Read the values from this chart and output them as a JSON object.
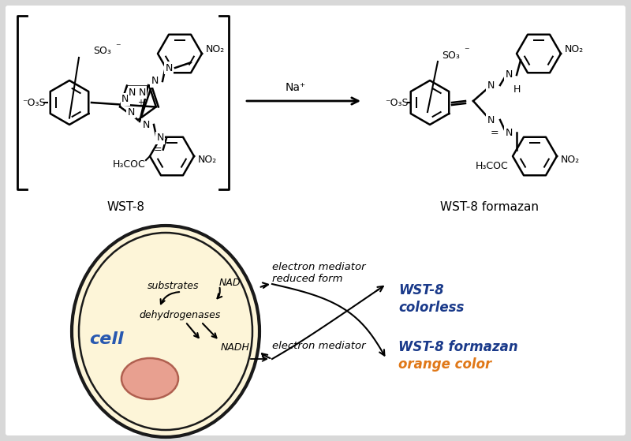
{
  "bg_color": "#d8d8d8",
  "panel_bg": "#ffffff",
  "cell_fill": "#fdf5d8",
  "cell_outline": "#1a1a1a",
  "nucleus_fill": "#e8a090",
  "nucleus_outline": "#b06050",
  "wst8_label_color": "#1a3a8a",
  "orange_color": "#e07818",
  "cell_text_color": "#2858b0",
  "wst8_label": "WST-8",
  "formazan_label": "WST-8 formazan",
  "substrates": "substrates",
  "dehydrogenases": "dehydrogenases",
  "nad": "NAD",
  "nadh": "NADH",
  "cell_word": "cell",
  "em_reduced_1": "electron mediator",
  "em_reduced_2": "reduced form",
  "em": "electron mediator",
  "wst8_colorless_1": "WST-8",
  "wst8_colorless_2": "colorless",
  "wst8_formazan_text": "WST-8 formazan",
  "orange_color_text": "orange color",
  "na_plus": "Na"
}
